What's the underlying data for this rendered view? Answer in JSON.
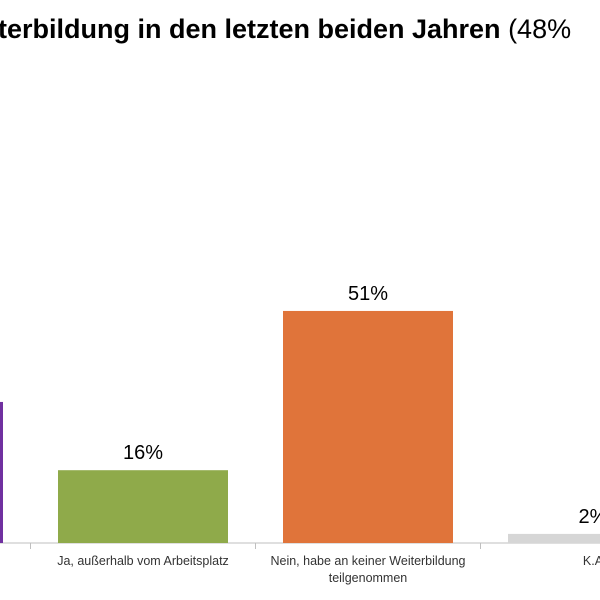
{
  "title": {
    "main": "terbildung in den letzten beiden Jahren",
    "suffix": "(48%"
  },
  "chart_data": {
    "type": "bar",
    "title": "terbildung in den letzten beiden Jahren (48%",
    "categories": [
      "",
      "Ja, außerhalb vom Arbeitsplatz",
      "Nein, habe an keiner Weiterbildung teilgenommen",
      "K.A"
    ],
    "category_label_lines": [
      [],
      [
        "Ja, außerhalb vom Arbeitsplatz"
      ],
      [
        "Nein, habe an keiner Weiterbildung",
        "teilgenommen"
      ],
      [
        "K.A"
      ]
    ],
    "values": [
      31,
      16,
      51,
      2
    ],
    "data_labels": [
      "",
      "16%",
      "51%",
      "2%"
    ],
    "colors": [
      "#7030a0",
      "#8faa4a",
      "#e0743a",
      "#d6d6d6"
    ],
    "ylim": [
      0,
      60
    ],
    "grid": false,
    "legend": "none"
  }
}
